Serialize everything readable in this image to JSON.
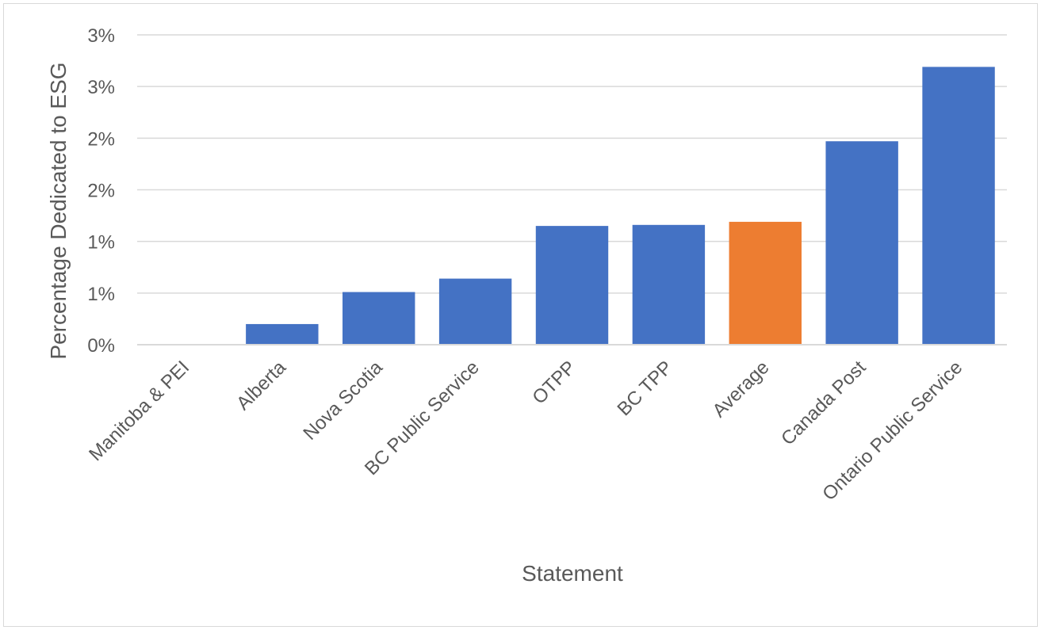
{
  "chart_data": {
    "type": "bar",
    "xlabel": "Statement",
    "ylabel": "Percentage Dedicated to ESG",
    "categories": [
      "Manitoba & PEI",
      "Alberta",
      "Nova Scotia",
      "BC Public Service",
      "OTPP",
      "BC TPP",
      "Average",
      "Canada Post",
      "Ontario Public Service"
    ],
    "values": [
      0.0,
      0.2,
      0.51,
      0.64,
      1.15,
      1.16,
      1.19,
      1.97,
      2.69
    ],
    "bar_colors": [
      "#4472c4",
      "#4472c4",
      "#4472c4",
      "#4472c4",
      "#4472c4",
      "#4472c4",
      "#ed7d31",
      "#4472c4",
      "#4472c4"
    ],
    "ylim": [
      0,
      3.0
    ],
    "yticks": [
      0,
      0.5,
      1.0,
      1.5,
      2.0,
      2.5,
      3.0
    ],
    "ytick_labels": [
      "0%",
      "1%",
      "1%",
      "2%",
      "2%",
      "3%",
      "3%"
    ],
    "grid": true,
    "legend": "none"
  }
}
